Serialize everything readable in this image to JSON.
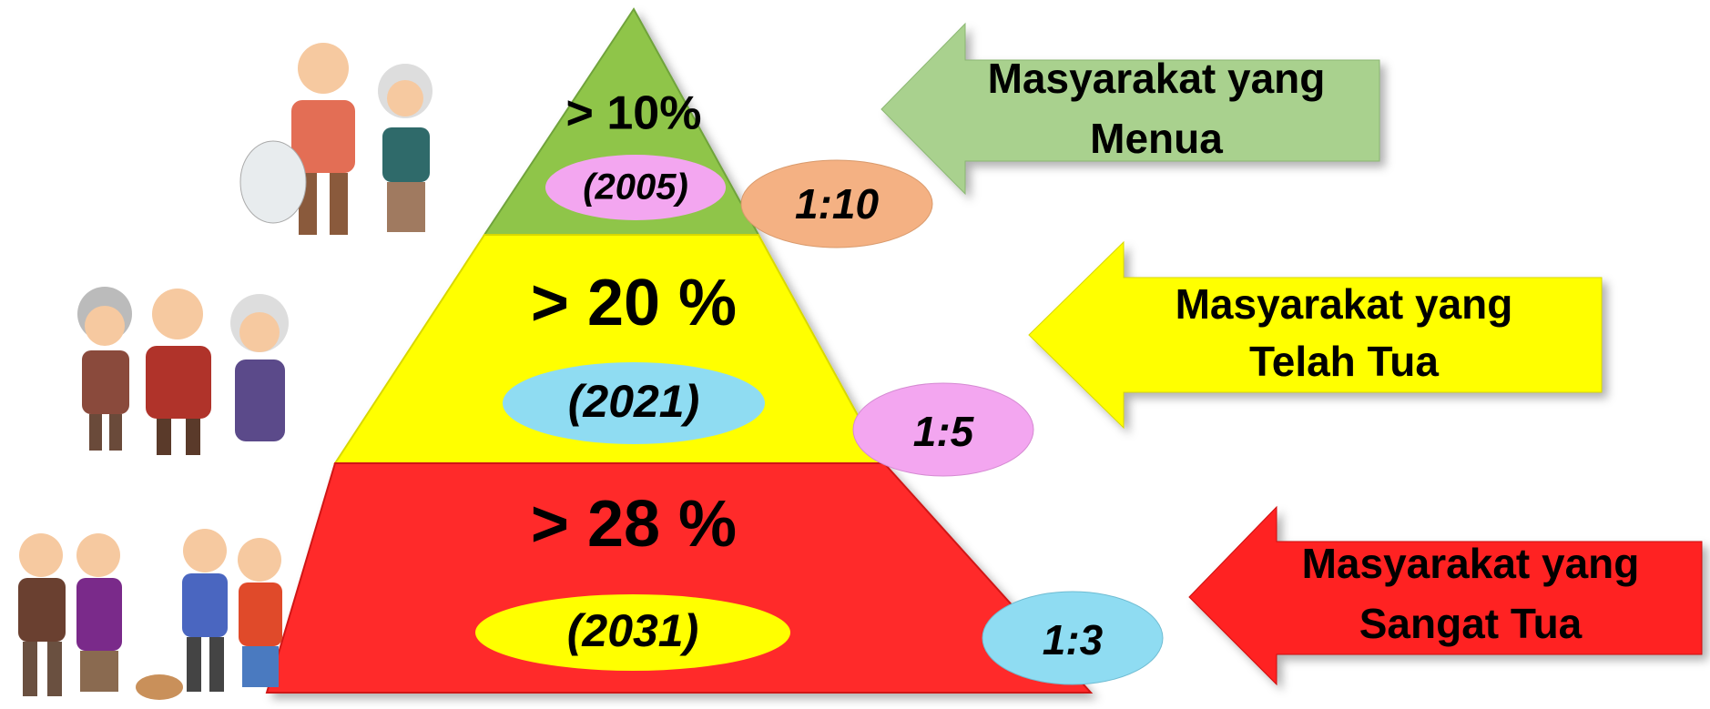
{
  "tiers": [
    {
      "percent": "> 10%",
      "year": "(2005)",
      "ratio": "1:10",
      "label": [
        "Masyarakat yang",
        "Menua"
      ]
    },
    {
      "percent": "> 20 %",
      "year": "(2021)",
      "ratio": "1:5",
      "label": [
        "Masyarakat yang",
        "Telah Tua"
      ]
    },
    {
      "percent": "> 28 %",
      "year": "(2031)",
      "ratio": "1:3",
      "label": [
        "Masyarakat yang",
        "Sangat Tua"
      ]
    }
  ]
}
